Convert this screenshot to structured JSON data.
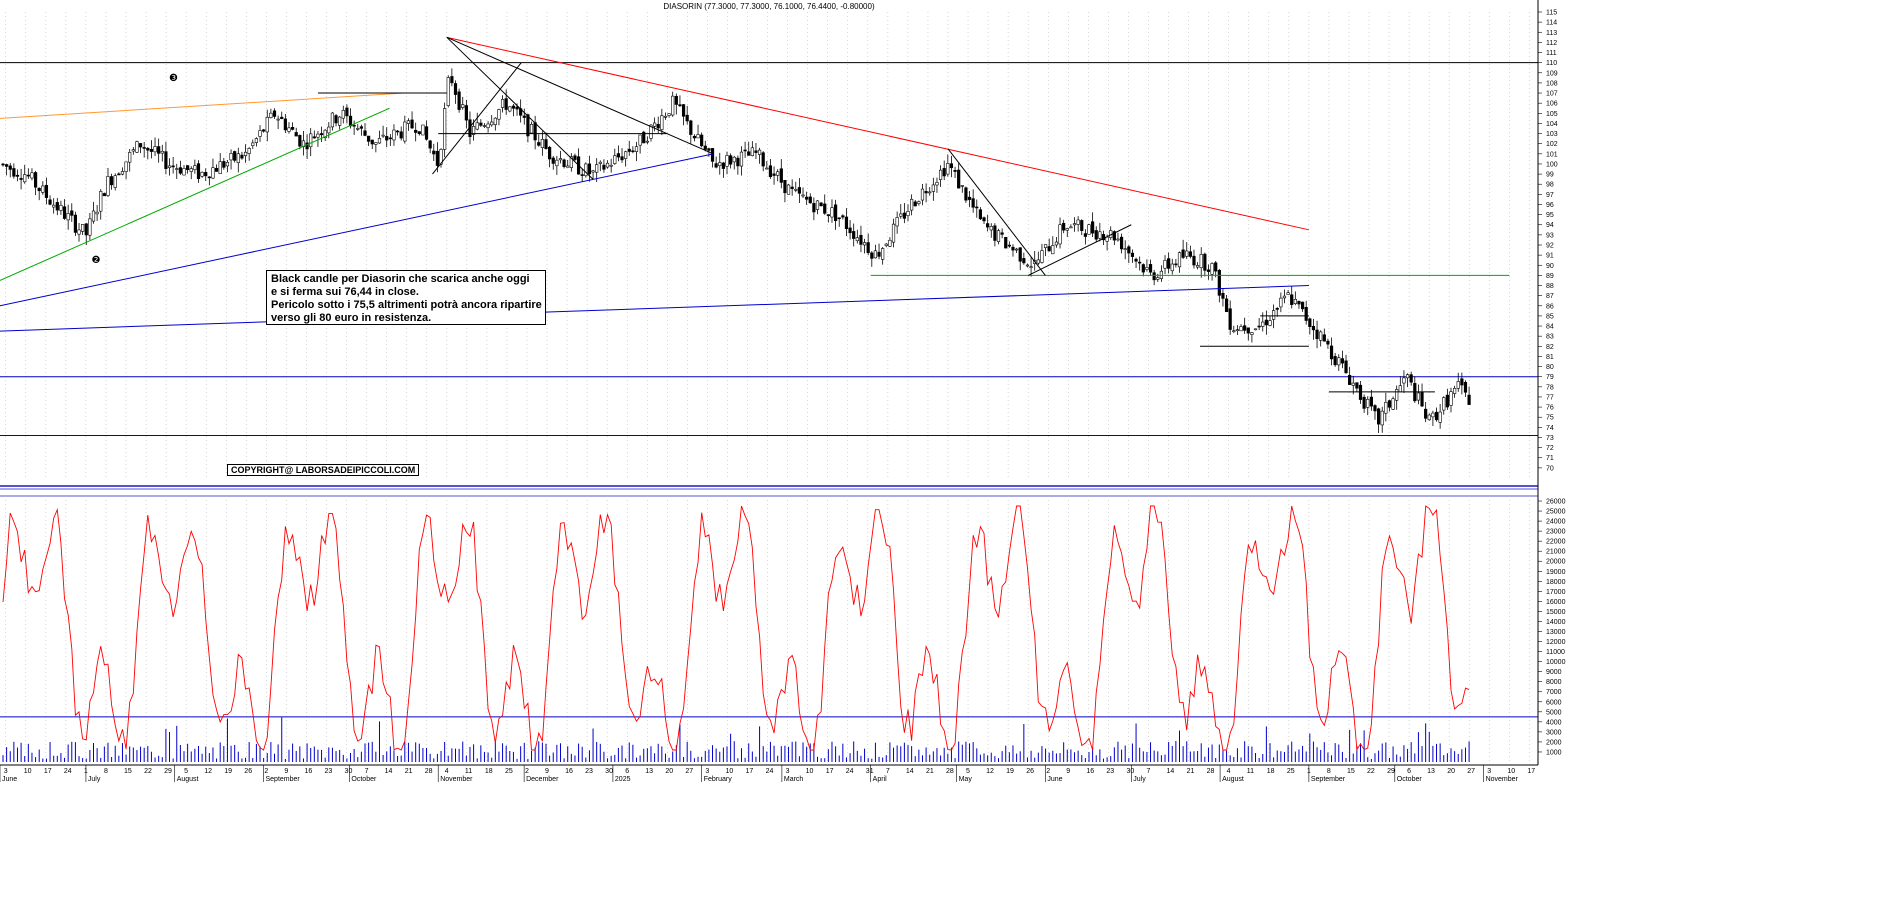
{
  "chart_data": [
    {
      "type": "candlestick",
      "title": "DIASORIN (77.3000, 77.3000, 76.1000, 76.4400, -0.80000)",
      "ylim": [
        69,
        115
      ],
      "y_ticks": [
        70,
        71,
        72,
        73,
        74,
        75,
        76,
        77,
        78,
        79,
        80,
        81,
        82,
        83,
        84,
        85,
        86,
        87,
        88,
        89,
        90,
        91,
        92,
        93,
        94,
        95,
        96,
        97,
        98,
        99,
        100,
        101,
        102,
        103,
        104,
        105,
        106,
        107,
        108,
        109,
        110,
        111,
        112,
        113,
        114,
        115
      ],
      "horizontal_levels": [
        {
          "value": 110,
          "color": "#000000"
        },
        {
          "value": 79,
          "color": "#0000cc"
        },
        {
          "value": 73.2,
          "color": "#0000cc"
        }
      ],
      "trendlines": [
        {
          "color": "#ff0000",
          "points": [
            [
              "2024-11-04",
              112.5
            ],
            [
              "2025-09-01",
              93.5
            ]
          ]
        },
        {
          "color": "#ff9933",
          "points": [
            [
              "2024-06-01",
              104.5
            ],
            [
              "2024-10-20",
              107
            ]
          ]
        },
        {
          "color": "#00aa00",
          "points": [
            [
              "2024-06-01",
              88.5
            ],
            [
              "2024-10-15",
              105.5
            ]
          ]
        },
        {
          "color": "#0000cc",
          "points": [
            [
              "2024-06-01",
              86
            ],
            [
              "2025-02-05",
              101
            ]
          ]
        },
        {
          "color": "#0000cc",
          "points": [
            [
              "2024-06-01",
              83.5
            ],
            [
              "2025-09-01",
              88
            ]
          ]
        },
        {
          "color": "#00aa00",
          "points": [
            [
              "2025-04-01",
              89
            ],
            [
              "2025-11-10",
              89
            ]
          ]
        },
        {
          "color": "#000000",
          "points": [
            [
              "2024-11-04",
              112.5
            ],
            [
              "2024-12-25",
              98.5
            ]
          ]
        },
        {
          "color": "#000000",
          "points": [
            [
              "2024-11-04",
              112.5
            ],
            [
              "2025-02-05",
              101
            ]
          ]
        },
        {
          "color": "#000000",
          "points": [
            [
              "2024-10-30",
              99
            ],
            [
              "2024-11-30",
              110
            ]
          ]
        },
        {
          "color": "#000000",
          "points": [
            [
              "2024-11-01",
              103
            ],
            [
              "2025-01-20",
              103
            ]
          ]
        },
        {
          "color": "#000000",
          "points": [
            [
              "2024-09-20",
              107
            ],
            [
              "2024-11-04",
              107
            ]
          ]
        },
        {
          "color": "#000000",
          "points": [
            [
              "2025-04-28",
              101.5
            ],
            [
              "2025-06-01",
              89
            ]
          ]
        },
        {
          "color": "#000000",
          "points": [
            [
              "2025-05-26",
              89
            ],
            [
              "2025-07-01",
              94
            ]
          ]
        },
        {
          "color": "#000000",
          "points": [
            [
              "2025-07-25",
              82
            ],
            [
              "2025-09-01",
              82
            ]
          ]
        },
        {
          "color": "#000000",
          "points": [
            [
              "2025-08-15",
              85
            ],
            [
              "2025-09-01",
              85
            ]
          ]
        },
        {
          "color": "#000000",
          "points": [
            [
              "2025-09-08",
              77.5
            ],
            [
              "2025-10-15",
              77.5
            ]
          ]
        }
      ],
      "markers": [
        {
          "label": "❸",
          "x": "2024-07-30",
          "y": 108.2
        },
        {
          "label": "❷",
          "x": "2024-07-03",
          "y": 90.2
        }
      ]
    },
    {
      "type": "line+bar",
      "series": [
        {
          "values": []
        }
      ],
      "ylim": [
        0,
        26500
      ],
      "y_ticks": [
        1000,
        2000,
        3000,
        4000,
        5000,
        6000,
        7000,
        8000,
        9000,
        10000,
        11000,
        12000,
        13000,
        14000,
        15000,
        16000,
        17000,
        18000,
        19000,
        20000,
        21000,
        22000,
        23000,
        24000,
        25000,
        26000
      ],
      "horizontal_levels": [
        {
          "value": 4500,
          "color": "#0000cc"
        }
      ]
    }
  ],
  "x_axis": {
    "month_labels": [
      {
        "label": "June",
        "date": "2024-06-01"
      },
      {
        "label": "July",
        "date": "2024-07-01"
      },
      {
        "label": "August",
        "date": "2024-08-01"
      },
      {
        "label": "September",
        "date": "2024-09-01"
      },
      {
        "label": "October",
        "date": "2024-10-01"
      },
      {
        "label": "November",
        "date": "2024-11-01"
      },
      {
        "label": "December",
        "date": "2024-12-01"
      },
      {
        "label": "2025",
        "date": "2025-01-01"
      },
      {
        "label": "February",
        "date": "2025-02-01"
      },
      {
        "label": "March",
        "date": "2025-03-01"
      },
      {
        "label": "April",
        "date": "2025-04-01"
      },
      {
        "label": "May",
        "date": "2025-05-01"
      },
      {
        "label": "June",
        "date": "2025-06-01"
      },
      {
        "label": "July",
        "date": "2025-07-01"
      },
      {
        "label": "August",
        "date": "2025-08-01"
      },
      {
        "label": "September",
        "date": "2025-09-01"
      },
      {
        "label": "October",
        "date": "2025-10-01"
      },
      {
        "label": "November",
        "date": "2025-11-01"
      }
    ]
  },
  "annotation": {
    "lines": [
      "Black candle per Diasorin che scarica anche oggi",
      "e si ferma sui 76,44 in close.",
      "Pericolo sotto i 75,5 altrimenti potrà ancora ripartire",
      "verso gli 80 euro in resistenza."
    ]
  },
  "copyright": "COPYRIGHT@ LABORSADEIPICCOLI.COM",
  "colors": {
    "up": "#ffffff",
    "down": "#000000",
    "osc": "#ff0000",
    "volume": "#0000cc",
    "grid": "#bbbbbb"
  }
}
